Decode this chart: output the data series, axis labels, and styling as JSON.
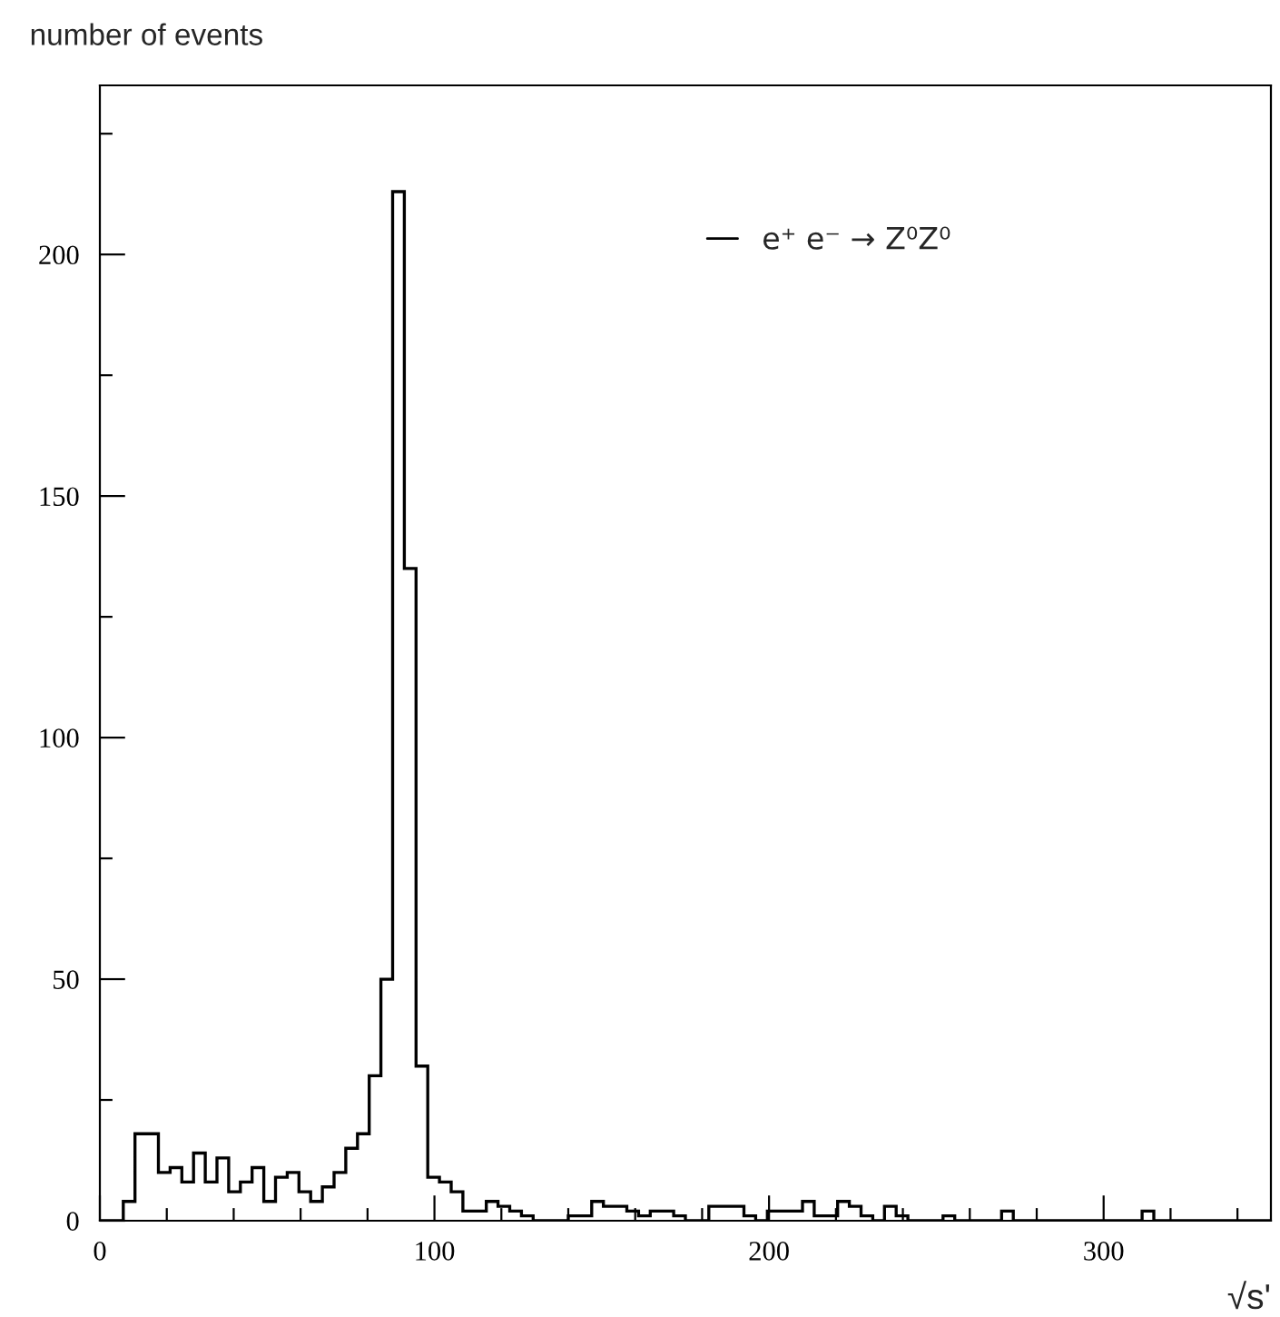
{
  "chart_data": {
    "type": "histogram",
    "xlabel": "√s'",
    "ylabel": "number of events",
    "bins": [
      0,
      3.5,
      7,
      10.5,
      14,
      17.5,
      21,
      24.5,
      28,
      31.5,
      35,
      38.5,
      42,
      45.5,
      49,
      52.5,
      56,
      59.5,
      63,
      66.5,
      70,
      73.5,
      77,
      80.5,
      84,
      87.5,
      91,
      94.5,
      98,
      101.5,
      105,
      108.5,
      112,
      115.5,
      119,
      122.5,
      126,
      129.5,
      133,
      136.5,
      140,
      143.5,
      147,
      150.5,
      154,
      157.5,
      161,
      164.5,
      168,
      171.5,
      175,
      178.5,
      182,
      185.5,
      189,
      192.5,
      196,
      199.5,
      203,
      206.5,
      210,
      213.5,
      217,
      220.5,
      224,
      227.5,
      231,
      234.5,
      238,
      241.5,
      245,
      248.5,
      252,
      255.5,
      259,
      262.5,
      266,
      269.5,
      273,
      276.5,
      280,
      283.5,
      287,
      290.5,
      294,
      297.5,
      301,
      304.5,
      308,
      311.5,
      315,
      318.5,
      322,
      325.5,
      329,
      332.5,
      336,
      339.5,
      343,
      346.5,
      350
    ],
    "series": [
      {
        "name": "e⁺ e⁻ → Z⁰Z⁰",
        "color": "#000000",
        "values": [
          0,
          0,
          4,
          18,
          18,
          10,
          11,
          8,
          14,
          8,
          13,
          6,
          8,
          11,
          4,
          9,
          10,
          6,
          4,
          7,
          10,
          15,
          18,
          30,
          50,
          213,
          135,
          32,
          9,
          8,
          6,
          2,
          2,
          4,
          3,
          2,
          1,
          0,
          0,
          0,
          1,
          1,
          4,
          3,
          3,
          2,
          1,
          2,
          2,
          1,
          0,
          0,
          3,
          3,
          3,
          1,
          0,
          2,
          2,
          2,
          4,
          1,
          1,
          4,
          3,
          1,
          0,
          3,
          1,
          0,
          0,
          0,
          1,
          0,
          0,
          0,
          0,
          2,
          0,
          0,
          0,
          0,
          0,
          0,
          0,
          0,
          0,
          0,
          0,
          2,
          0,
          0,
          0,
          0,
          0,
          0,
          0,
          0,
          0,
          0
        ]
      }
    ],
    "xlim": [
      0,
      350
    ],
    "xticks": [
      0,
      {
        "value": 20,
        "label": null
      },
      {
        "value": 40,
        "label": null
      },
      {
        "value": 60,
        "label": null
      },
      {
        "value": 80,
        "label": null
      },
      100,
      {
        "value": 120,
        "label": null
      },
      {
        "value": 140,
        "label": null
      },
      {
        "value": 160,
        "label": null
      },
      {
        "value": 180,
        "label": null
      },
      200,
      {
        "value": 220,
        "label": null
      },
      {
        "value": 240,
        "label": null
      },
      {
        "value": 260,
        "label": null
      },
      {
        "value": 280,
        "label": null
      },
      300,
      {
        "value": 320,
        "label": null
      },
      {
        "value": 340,
        "label": null
      }
    ],
    "ylim": [
      0,
      235
    ],
    "yticks": [
      0,
      {
        "value": 25,
        "label": null
      },
      50,
      {
        "value": 75,
        "label": null
      },
      100,
      {
        "value": 125,
        "label": null
      },
      150,
      {
        "value": 175,
        "label": null
      },
      200,
      {
        "value": 225,
        "label": null
      }
    ],
    "grid": false,
    "legend": "top right"
  }
}
